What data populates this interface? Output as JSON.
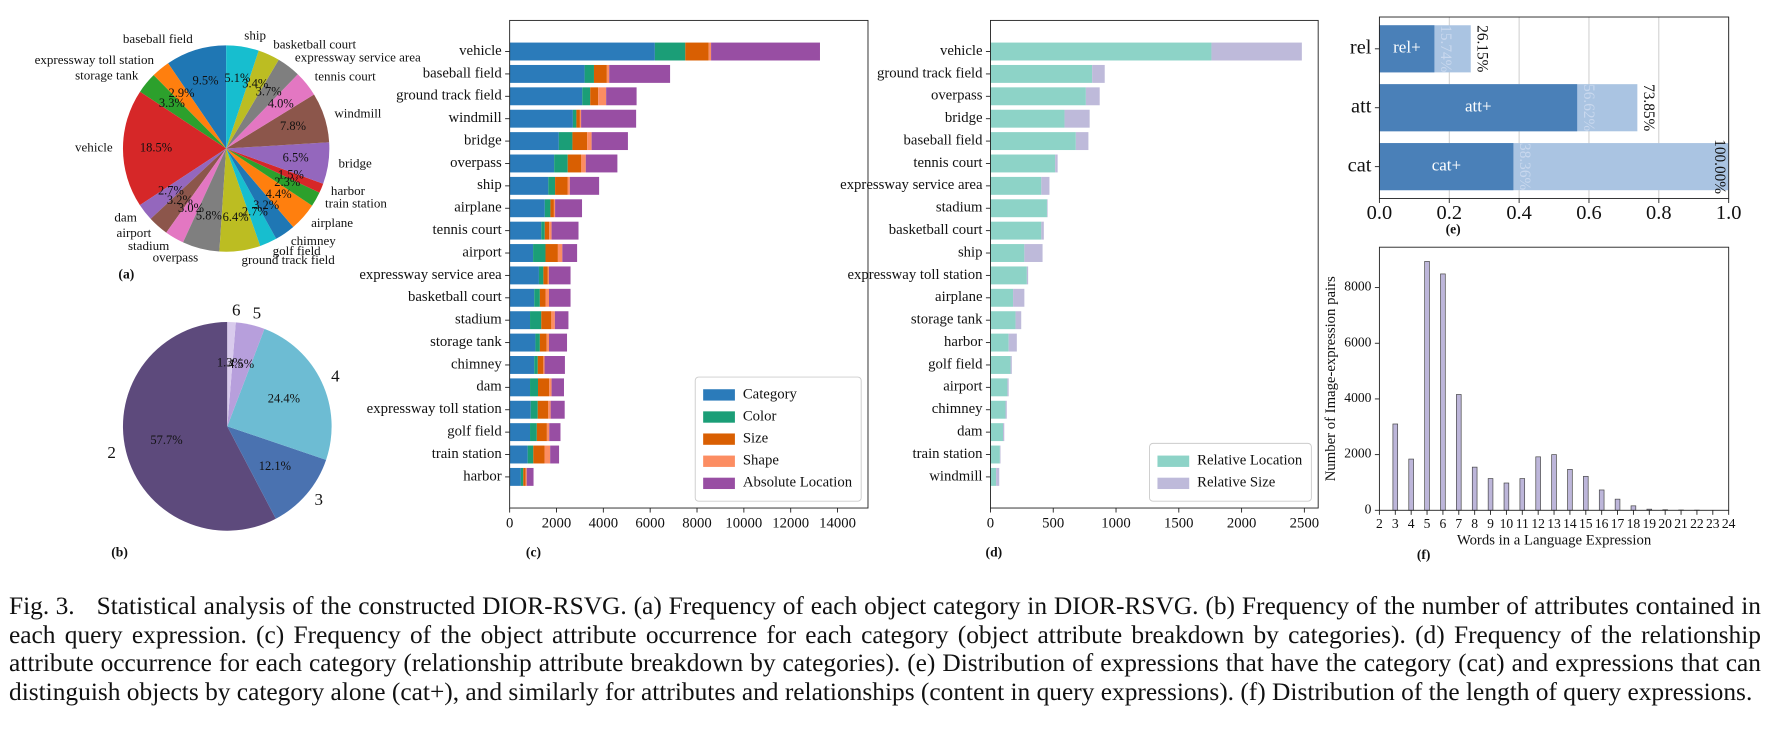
{
  "chart_data": [
    {
      "type": "pie",
      "label": "(a)",
      "startangle": 90,
      "direction": "counterclockwise",
      "categories": [
        "baseball field",
        "expressway toll station",
        "storage tank",
        "vehicle",
        "dam",
        "airport",
        "stadium",
        "overpass",
        "ground track field",
        "golf field",
        "chimney",
        "airplane",
        "train station",
        "harbor",
        "bridge",
        "windmill",
        "tennis court",
        "expressway service area",
        "basketball court",
        "ship"
      ],
      "values": [
        9.5,
        2.9,
        3.3,
        18.5,
        2.7,
        3.2,
        3.0,
        5.8,
        6.4,
        2.7,
        3.2,
        4.4,
        2.3,
        1.5,
        6.5,
        7.8,
        4.0,
        3.7,
        3.4,
        5.1
      ],
      "value_labels": [
        "9.5%",
        "2.9%",
        "3.3%",
        "18.5%",
        "2.7%",
        "3.2%",
        "3.0%",
        "5.8%",
        "6.4%",
        "2.7%",
        "3.2%",
        "4.4%",
        "2.3%",
        "1.5%",
        "6.5%",
        "7.8%",
        "4.0%",
        "3.7%",
        "3.4%",
        "5.1%"
      ],
      "colors": [
        "#1f77b4",
        "#ff7f0e",
        "#2ca02c",
        "#d62728",
        "#9467bd",
        "#8c564b",
        "#e377c2",
        "#7f7f7f",
        "#bcbd22",
        "#17becf",
        "#1f77b4",
        "#ff7f0e",
        "#2ca02c",
        "#d62728",
        "#9467bd",
        "#8c564b",
        "#e377c2",
        "#7f7f7f",
        "#bcbd22",
        "#17becf"
      ]
    },
    {
      "type": "pie",
      "label": "(b)",
      "startangle": 90,
      "direction": "counterclockwise",
      "categories": [
        "2",
        "3",
        "4",
        "5",
        "6"
      ],
      "values": [
        57.7,
        12.1,
        24.4,
        4.5,
        1.3
      ],
      "value_labels": [
        "57.7%",
        "12.1%",
        "24.4%",
        "4.5%",
        "1.3%"
      ],
      "colors": [
        "#5d4a7c",
        "#4a72b0",
        "#6dbcd3",
        "#b79fdc",
        "#d9cbed"
      ]
    },
    {
      "type": "barh",
      "label": "(c)",
      "stacked": true,
      "legend": "lower right",
      "categories": [
        "vehicle",
        "baseball field",
        "ground track field",
        "windmill",
        "bridge",
        "overpass",
        "ship",
        "airplane",
        "tennis court",
        "airport",
        "expressway service area",
        "basketball court",
        "stadium",
        "storage tank",
        "chimney",
        "dam",
        "expressway toll station",
        "golf field",
        "train station",
        "harbor"
      ],
      "series": [
        {
          "name": "Category",
          "color": "#2b7bba",
          "values": [
            6200,
            3200,
            3100,
            2700,
            2100,
            1900,
            1650,
            1500,
            1350,
            1000,
            1250,
            1050,
            870,
            1100,
            1050,
            870,
            900,
            870,
            770,
            480
          ]
        },
        {
          "name": "Color",
          "color": "#1b9e77",
          "values": [
            1300,
            400,
            340,
            150,
            580,
            580,
            290,
            240,
            150,
            530,
            190,
            240,
            480,
            190,
            150,
            340,
            300,
            290,
            240,
            100
          ]
        },
        {
          "name": "Size",
          "color": "#d95f02",
          "values": [
            1000,
            550,
            340,
            150,
            630,
            580,
            530,
            150,
            190,
            530,
            190,
            240,
            430,
            290,
            240,
            480,
            450,
            430,
            480,
            100
          ]
        },
        {
          "name": "Shape",
          "color": "#fc8d62",
          "values": [
            100,
            100,
            340,
            50,
            190,
            190,
            100,
            50,
            100,
            190,
            50,
            150,
            150,
            100,
            50,
            100,
            100,
            100,
            240,
            50
          ]
        },
        {
          "name": "Absolute Location",
          "color": "#984ea3",
          "values": [
            4650,
            2600,
            1300,
            2350,
            1550,
            1350,
            1250,
            1150,
            1150,
            630,
            920,
            920,
            580,
            770,
            870,
            530,
            600,
            480,
            380,
            290
          ]
        }
      ],
      "xlim": [
        0,
        15300
      ],
      "xticks": [
        0,
        2000,
        4000,
        6000,
        8000,
        10000,
        12000,
        14000
      ]
    },
    {
      "type": "barh",
      "label": "(d)",
      "stacked": true,
      "legend": "lower right",
      "categories": [
        "vehicle",
        "ground track field",
        "overpass",
        "bridge",
        "baseball field",
        "tennis court",
        "expressway service area",
        "stadium",
        "basketball court",
        "ship",
        "expressway toll station",
        "airplane",
        "storage tank",
        "harbor",
        "golf field",
        "airport",
        "chimney",
        "dam",
        "train station",
        "windmill"
      ],
      "series": [
        {
          "name": "Relative Location",
          "color": "#8dd3c7",
          "values": [
            1760,
            810,
            760,
            590,
            680,
            515,
            405,
            450,
            405,
            270,
            290,
            180,
            200,
            145,
            160,
            135,
            120,
            100,
            75,
            45
          ]
        },
        {
          "name": "Relative Size",
          "color": "#bebada",
          "values": [
            720,
            100,
            110,
            200,
            100,
            20,
            65,
            5,
            20,
            145,
            10,
            90,
            45,
            65,
            10,
            10,
            10,
            10,
            5,
            25
          ]
        }
      ],
      "xlim": [
        0,
        2610
      ],
      "xticks": [
        0,
        500,
        1000,
        1500,
        2000,
        2500
      ]
    },
    {
      "type": "barh",
      "label": "(e)",
      "stacked": false,
      "grid": true,
      "categories": [
        "rel",
        "att",
        "cat"
      ],
      "series": [
        {
          "color": "#aac4e2",
          "values": [
            0.2615,
            0.7385,
            1.0
          ],
          "value_labels": [
            "26.15%",
            "73.85%",
            "100.00%"
          ]
        },
        {
          "color": "#4a80b8",
          "values": [
            0.1574,
            0.5662,
            0.3836
          ],
          "value_labels": [
            "15.74%",
            "56.62%",
            "38.36%"
          ],
          "labels": [
            "rel+",
            "att+",
            "cat+"
          ]
        }
      ],
      "xlim": [
        0,
        1
      ],
      "xticks": [
        {
          "value": 0,
          "label": "0.0"
        },
        {
          "value": 0.2,
          "label": "0.2"
        },
        {
          "value": 0.4,
          "label": "0.4"
        },
        {
          "value": 0.6,
          "label": "0.6"
        },
        {
          "value": 0.8,
          "label": "0.8"
        },
        {
          "value": 1,
          "label": "1.0"
        }
      ]
    },
    {
      "type": "bar",
      "label": "(f)",
      "xlabel": "Words in a Language Expression",
      "ylabel": "Number of Image-expression pairs",
      "x": [
        3,
        4,
        5,
        6,
        7,
        8,
        9,
        10,
        11,
        12,
        13,
        14,
        15,
        16,
        17,
        18,
        19,
        20,
        21,
        22
      ],
      "values": [
        3100,
        1840,
        8940,
        8490,
        4160,
        1550,
        1140,
        980,
        1140,
        1920,
        2000,
        1470,
        1220,
        730,
        400,
        160,
        40,
        20,
        10,
        5
      ],
      "color": "#bdb6da",
      "edgecolor": "#444444",
      "xlim": [
        2,
        24
      ],
      "xticks": [
        2,
        3,
        4,
        5,
        6,
        7,
        8,
        9,
        10,
        11,
        12,
        13,
        14,
        15,
        16,
        17,
        18,
        19,
        20,
        21,
        22,
        23,
        24
      ],
      "ylim": [
        0,
        9450
      ],
      "yticks": [
        0,
        2000,
        4000,
        6000,
        8000
      ]
    }
  ],
  "caption": {
    "label": "Fig. 3.",
    "text": "Statistical analysis of the constructed DIOR-RSVG. (a) Frequency of each object category in DIOR-RSVG. (b) Frequency of the number of attributes contained in each query expression. (c) Frequency of the object attribute occurrence for each category (object attribute breakdown by categories). (d) Frequency of the relationship attribute occurrence for each category (relationship attribute breakdown by categories). (e) Distribution of expressions that have the category (cat) and expressions that can distinguish objects by category alone (cat+), and similarly for attributes and relationships (content in query expressions). (f) Distribution of the length of query expressions."
  }
}
